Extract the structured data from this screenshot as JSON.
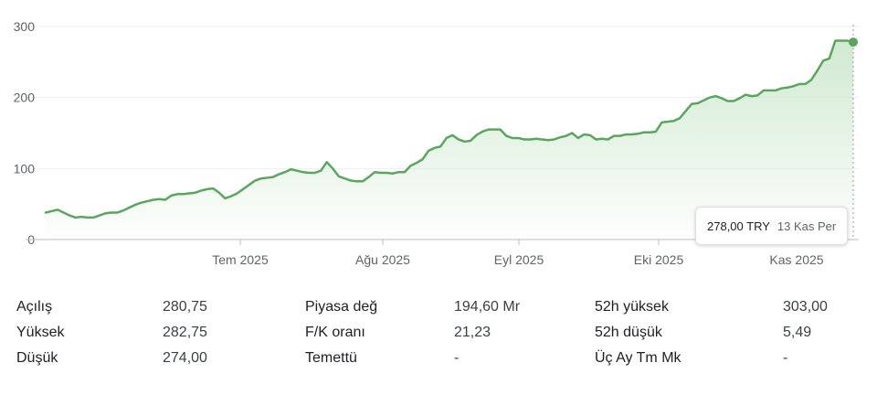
{
  "chart_data": {
    "type": "area",
    "colors": {
      "line": "#5aa65e",
      "fill_top": "#c8e6c9",
      "grid": "#eeeeee",
      "axis": "#bdbdbd"
    },
    "y_ticks": [
      "0",
      "100",
      "200",
      "300"
    ],
    "ylim": [
      0,
      300
    ],
    "x_ticks": [
      "Tem 2025",
      "Ağu 2025",
      "Eyl 2025",
      "Eki 2025",
      "Kas 2025"
    ],
    "grid": true,
    "values": [
      38,
      40,
      42,
      38,
      34,
      31,
      32,
      31,
      31,
      34,
      37,
      38,
      38,
      41,
      45,
      49,
      52,
      54,
      56,
      57,
      56,
      62,
      64,
      64,
      65,
      66,
      69,
      71,
      72,
      66,
      58,
      61,
      65,
      71,
      77,
      83,
      86,
      87,
      88,
      92,
      95,
      99,
      97,
      95,
      94,
      94,
      97,
      109,
      100,
      89,
      86,
      83,
      82,
      82,
      88,
      95,
      94,
      94,
      93,
      95,
      95,
      104,
      108,
      113,
      125,
      129,
      131,
      143,
      147,
      141,
      138,
      139,
      147,
      152,
      155,
      155,
      155,
      146,
      143,
      143,
      141,
      141,
      142,
      141,
      140,
      141,
      144,
      146,
      150,
      143,
      148,
      147,
      141,
      142,
      141,
      146,
      146,
      148,
      148,
      149,
      151,
      151,
      152,
      165,
      166,
      167,
      171,
      181,
      191,
      192,
      196,
      200,
      202,
      199,
      195,
      195,
      199,
      204,
      202,
      203,
      210,
      210,
      210,
      213,
      214,
      216,
      219,
      219,
      225,
      238,
      252,
      255,
      280,
      280,
      280,
      278
    ],
    "last": {
      "value": 278
    }
  },
  "tooltip": {
    "price": "278,00 TRY",
    "date": "13 Kas Per"
  },
  "stats": [
    {
      "label": "Açılış",
      "value": "280,75",
      "label2": "Piyasa değ",
      "value2": "194,60 Mr",
      "label3": "52h yüksek",
      "value3": "303,00"
    },
    {
      "label": "Yüksek",
      "value": "282,75",
      "label2": "F/K oranı",
      "value2": "21,23",
      "label3": "52h düşük",
      "value3": "5,49"
    },
    {
      "label": "Düşük",
      "value": "274,00",
      "label2": "Temettü",
      "value2": "-",
      "label3": "Üç Ay Tm Mk",
      "value3": "-"
    }
  ]
}
